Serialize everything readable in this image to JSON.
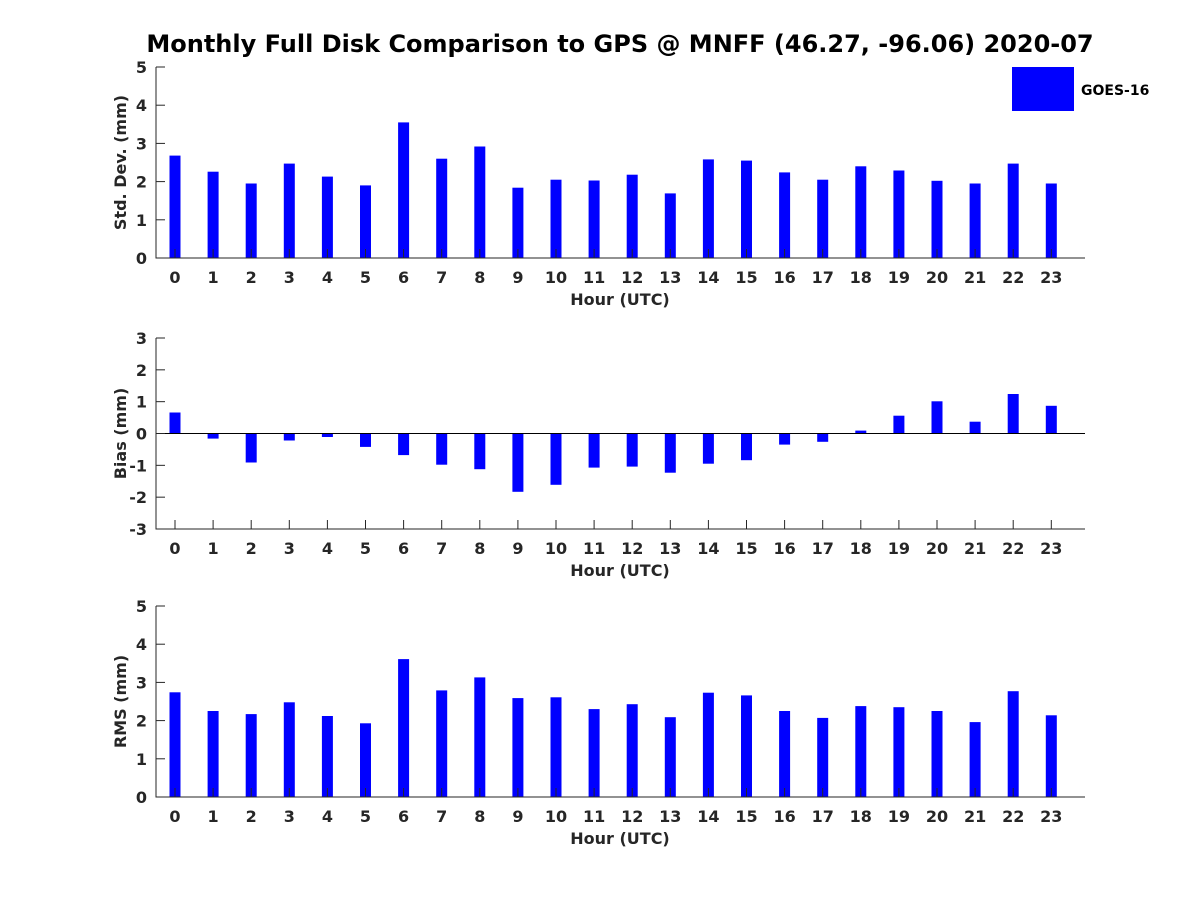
{
  "title": "Monthly Full Disk Comparison to GPS @ MNFF (46.27, -96.06) 2020-07",
  "legend": {
    "label": "GOES-16",
    "color": "#0000ff"
  },
  "chart_data": [
    {
      "type": "bar",
      "id": "std",
      "xlabel": "Hour (UTC)",
      "ylabel": "Std. Dev. (mm)",
      "ylim": [
        0,
        5
      ],
      "yticks": [
        0,
        1,
        2,
        3,
        4,
        5
      ],
      "categories": [
        "0",
        "1",
        "2",
        "3",
        "4",
        "5",
        "6",
        "7",
        "8",
        "9",
        "10",
        "11",
        "12",
        "13",
        "14",
        "15",
        "16",
        "17",
        "18",
        "19",
        "20",
        "21",
        "22",
        "23"
      ],
      "series": [
        {
          "name": "GOES-16",
          "color": "#0000ff",
          "values": [
            2.68,
            2.26,
            1.95,
            2.47,
            2.13,
            1.9,
            3.55,
            2.6,
            2.92,
            1.84,
            2.05,
            2.03,
            2.18,
            1.69,
            2.58,
            2.55,
            2.24,
            2.05,
            2.4,
            2.29,
            2.02,
            1.95,
            2.47,
            1.95
          ]
        }
      ]
    },
    {
      "type": "bar",
      "id": "bias",
      "xlabel": "Hour (UTC)",
      "ylabel": "Bias (mm)",
      "ylim": [
        -3,
        3
      ],
      "yticks": [
        -3,
        -2,
        -1,
        0,
        1,
        2,
        3
      ],
      "categories": [
        "0",
        "1",
        "2",
        "3",
        "4",
        "5",
        "6",
        "7",
        "8",
        "9",
        "10",
        "11",
        "12",
        "13",
        "14",
        "15",
        "16",
        "17",
        "18",
        "19",
        "20",
        "21",
        "22",
        "23"
      ],
      "series": [
        {
          "name": "GOES-16",
          "color": "#0000ff",
          "values": [
            0.66,
            -0.16,
            -0.91,
            -0.22,
            -0.11,
            -0.42,
            -0.68,
            -0.98,
            -1.12,
            -1.83,
            -1.61,
            -1.07,
            -1.04,
            -1.23,
            -0.95,
            -0.84,
            -0.35,
            -0.26,
            0.09,
            0.56,
            1.01,
            0.37,
            1.24,
            0.87
          ]
        }
      ]
    },
    {
      "type": "bar",
      "id": "rms",
      "xlabel": "Hour (UTC)",
      "ylabel": "RMS (mm)",
      "ylim": [
        0,
        5
      ],
      "yticks": [
        0,
        1,
        2,
        3,
        4,
        5
      ],
      "categories": [
        "0",
        "1",
        "2",
        "3",
        "4",
        "5",
        "6",
        "7",
        "8",
        "9",
        "10",
        "11",
        "12",
        "13",
        "14",
        "15",
        "16",
        "17",
        "18",
        "19",
        "20",
        "21",
        "22",
        "23"
      ],
      "series": [
        {
          "name": "GOES-16",
          "color": "#0000ff",
          "values": [
            2.74,
            2.25,
            2.17,
            2.48,
            2.12,
            1.93,
            3.61,
            2.79,
            3.13,
            2.59,
            2.61,
            2.3,
            2.43,
            2.09,
            2.73,
            2.66,
            2.25,
            2.07,
            2.38,
            2.35,
            2.25,
            1.96,
            2.77,
            2.14
          ]
        }
      ]
    }
  ]
}
